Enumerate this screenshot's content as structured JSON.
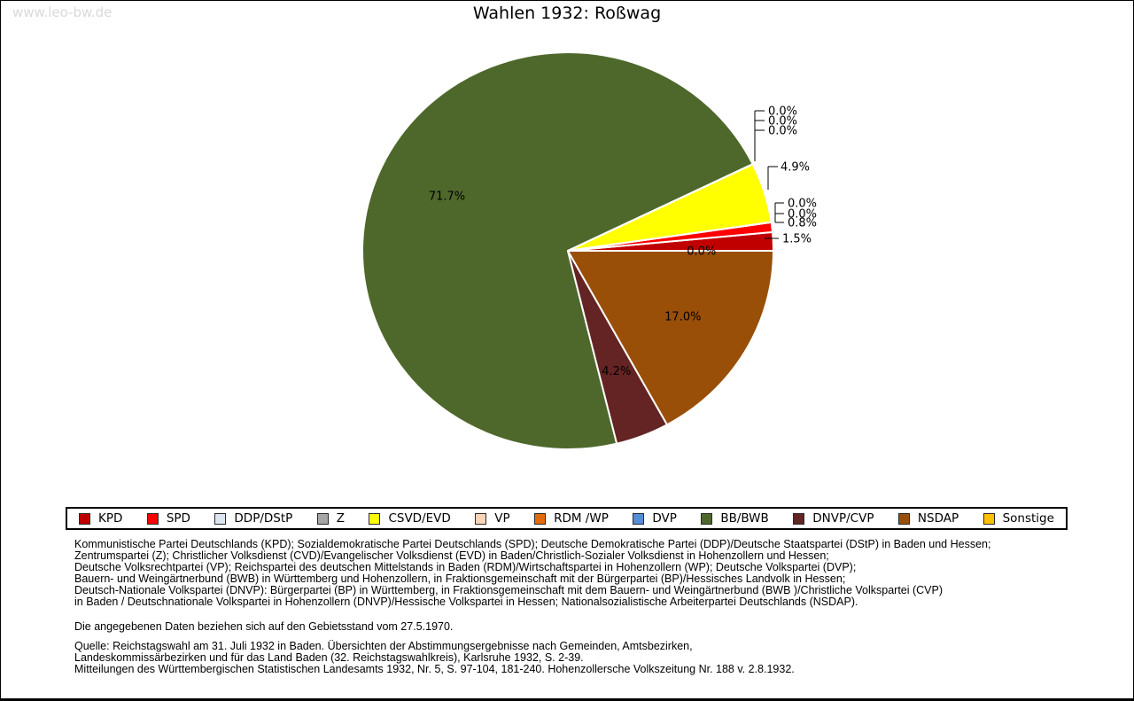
{
  "watermark": "www.leo-bw.de",
  "title": "Wahlen 1932: Roßwag",
  "chart_data": {
    "type": "pie",
    "title": "Wahlen 1932: Roßwag",
    "unit": "percent",
    "start_angle_deg": 0,
    "direction": "counterclockwise",
    "legend_position": "bottom",
    "slices": [
      {
        "party": "KPD",
        "value": 1.5,
        "label": "1.5%",
        "color": "#c00000",
        "label_placement": "outside"
      },
      {
        "party": "SPD",
        "value": 0.8,
        "label": "0.8%",
        "color": "#ff0000",
        "label_placement": "outside"
      },
      {
        "party": "DDP/DStP",
        "value": 0.0,
        "label": "0.0%",
        "color": "#dce6f1",
        "label_placement": "outside"
      },
      {
        "party": "Z",
        "value": 0.0,
        "label": "0.0%",
        "color": "#a6a6a6",
        "label_placement": "outside"
      },
      {
        "party": "CSVD/EVD",
        "value": 4.9,
        "label": "4.9%",
        "color": "#ffff00",
        "label_placement": "outside"
      },
      {
        "party": "VP",
        "value": 0.0,
        "label": "0.0%",
        "color": "#fbd5b5",
        "label_placement": "outside"
      },
      {
        "party": "RDM /WP",
        "value": 0.0,
        "label": "0.0%",
        "color": "#e36c0a",
        "label_placement": "outside"
      },
      {
        "party": "DVP",
        "value": 0.0,
        "label": "0.0%",
        "color": "#558ed5",
        "label_placement": "outside"
      },
      {
        "party": "BB/BWB",
        "value": 71.7,
        "label": "71.7%",
        "color": "#4e682b",
        "label_placement": "inside"
      },
      {
        "party": "DNVP/CVP",
        "value": 4.2,
        "label": "4.2%",
        "color": "#632423",
        "label_placement": "inside"
      },
      {
        "party": "NSDAP",
        "value": 17.0,
        "label": "17.0%",
        "color": "#994f08",
        "label_placement": "inside"
      },
      {
        "party": "Sonstige",
        "value": 0.0,
        "label": "0.0%",
        "color": "#ffc000",
        "label_placement": "inside"
      }
    ]
  },
  "footnotes": {
    "party_abbreviations": [
      "Kommunistische Partei Deutschlands (KPD); Sozialdemokratische Partei Deutschlands (SPD); Deutsche Demokratische Partei (DDP)/Deutsche Staatspartei (DStP) in Baden und Hessen;",
      "Zentrumspartei (Z); Christlicher Volksdienst (CVD)/Evangelischer Volksdienst (EVD) in Baden/Christlich-Sozialer Volksdienst in Hohenzollern und Hessen;",
      "Deutsche Volksrechtpartei (VP); Reichspartei des deutschen Mittelstands in Baden (RDM)/Wirtschaftspartei in Hohenzollern (WP); Deutsche Volkspartei (DVP);",
      "Bauern- und Weingärtnerbund (BWB) in Württemberg und Hohenzollern, in Fraktionsgemeinschaft mit der Bürgerpartei (BP)/Hessisches Landvolk in Hessen;",
      "Deutsch-Nationale Volkspartei (DNVP): Bürgerpartei (BP) in Württemberg, in Fraktionsgemeinschaft mit dem Bauern- und Weingärtnerbund (BWB )/Christliche Volkspartei (CVP)",
      "in Baden / Deutschnationale Volkspartei in Hohenzollern (DNVP)/Hessische Volkspartei in Hessen; Nationalsozialistische Arbeiterpartei Deutschlands (NSDAP)."
    ],
    "territorial_note": "Die angegebenen Daten beziehen sich auf den Gebietsstand vom 27.5.1970.",
    "source": [
      "Quelle: Reichstagswahl am 31. Juli 1932 in Baden. Übersichten der Abstimmungsergebnisse nach Gemeinden, Amtsbezirken,",
      "Landeskommissärbezirken und für das Land Baden (32. Reichstagswahlkreis), Karlsruhe 1932, S. 2-39.",
      "Mitteilungen des Württembergischen Statistischen Landesamts 1932, Nr. 5, S. 97-104, 181-240. Hohenzollersche Volkszeitung Nr. 188 v. 2.8.1932."
    ]
  }
}
